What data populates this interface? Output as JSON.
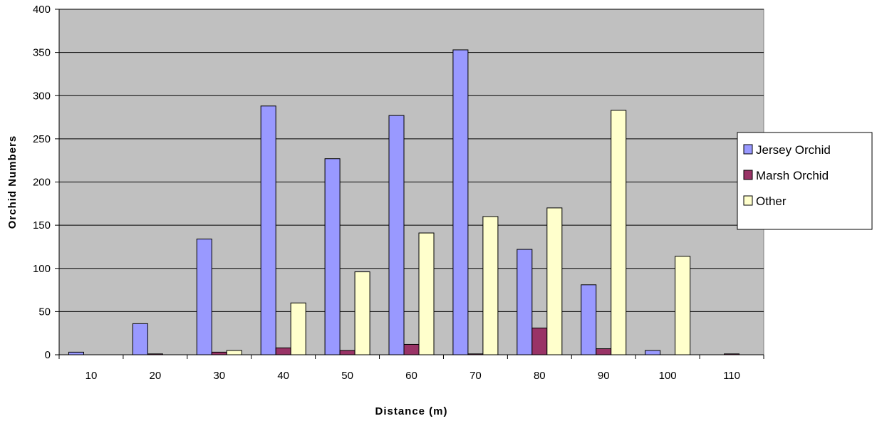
{
  "chart_data": {
    "type": "bar",
    "title": "",
    "xlabel": "Distance (m)",
    "ylabel": "Orchid Numbers",
    "categories": [
      "10",
      "20",
      "30",
      "40",
      "50",
      "60",
      "70",
      "80",
      "90",
      "100",
      "110"
    ],
    "y_ticks": [
      "0",
      "50",
      "100",
      "150",
      "200",
      "250",
      "300",
      "350",
      "400"
    ],
    "ylim": [
      0,
      400
    ],
    "grid": true,
    "plot_background": "#c0c0c0",
    "legend_position": "right",
    "series": [
      {
        "name": "Jersey Orchid",
        "color": "#9999ff",
        "values": [
          3,
          36,
          134,
          288,
          227,
          277,
          353,
          122,
          81,
          5,
          0
        ]
      },
      {
        "name": "Marsh Orchid",
        "color": "#993366",
        "values": [
          0,
          1,
          3,
          8,
          5,
          12,
          1,
          31,
          7,
          0,
          1
        ]
      },
      {
        "name": "Other",
        "color": "#ffffcc",
        "values": [
          0,
          0,
          5,
          60,
          96,
          141,
          160,
          170,
          283,
          114,
          0
        ]
      }
    ]
  }
}
